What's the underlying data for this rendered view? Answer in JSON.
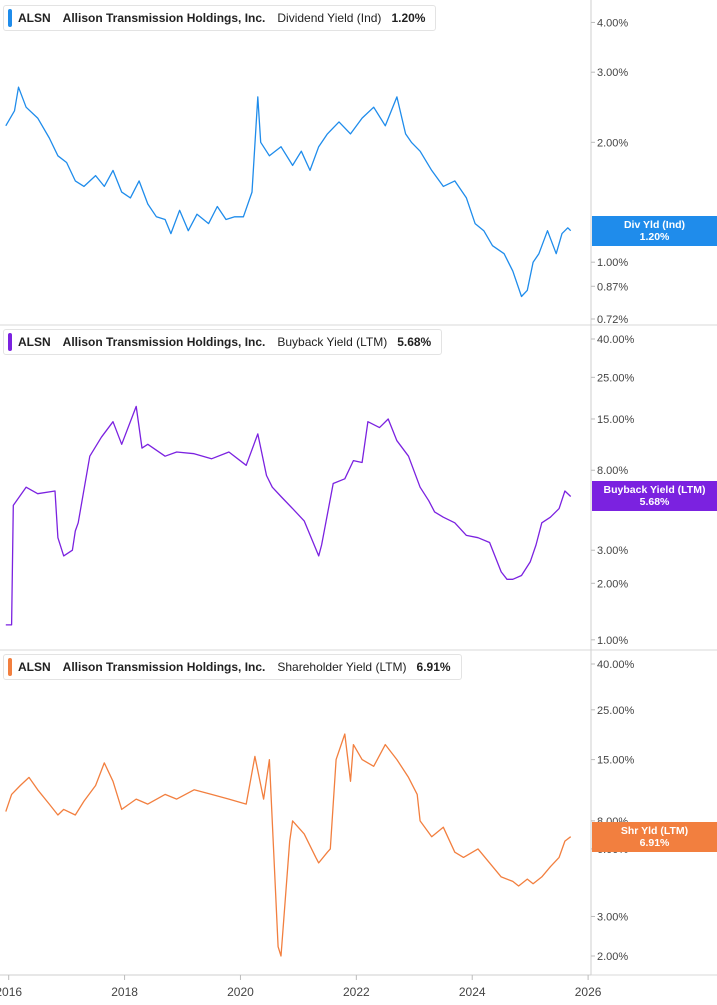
{
  "chart_data": [
    {
      "type": "line",
      "ticker": "ALSN",
      "company": "Allison Transmission Holdings, Inc.",
      "metric": "Dividend Yield (Ind)",
      "current": "1.20%",
      "tag_label": "Div Yld (Ind)",
      "color": "#1f8ceb",
      "scale": "log",
      "ylim": [
        0.72,
        4.2
      ],
      "yticks": [
        "4.00%",
        "3.00%",
        "2.00%",
        "1.00%",
        "0.87%",
        "0.72%"
      ],
      "ytick_values": [
        4.0,
        3.0,
        2.0,
        1.0,
        0.87,
        0.72
      ],
      "series": [
        {
          "x": [
            2015.95,
            2016.1,
            2016.17,
            2016.3,
            2016.5,
            2016.7,
            2016.85,
            2017.0,
            2017.15,
            2017.3,
            2017.5,
            2017.65,
            2017.8,
            2017.95,
            2018.1,
            2018.25,
            2018.4,
            2018.55,
            2018.7,
            2018.8,
            2018.95,
            2019.1,
            2019.25,
            2019.45,
            2019.6,
            2019.75,
            2019.9,
            2020.05,
            2020.2,
            2020.3,
            2020.35,
            2020.5,
            2020.7,
            2020.9,
            2021.05,
            2021.2,
            2021.35,
            2021.5,
            2021.7,
            2021.9,
            2022.1,
            2022.3,
            2022.5,
            2022.7,
            2022.85,
            2022.95,
            2023.1,
            2023.3,
            2023.5,
            2023.7,
            2023.9,
            2024.05,
            2024.2,
            2024.35,
            2024.55,
            2024.7,
            2024.85,
            2024.95,
            2025.05,
            2025.15,
            2025.3,
            2025.45,
            2025.55,
            2025.65,
            2025.7
          ],
          "y": [
            2.2,
            2.4,
            2.75,
            2.45,
            2.3,
            2.05,
            1.85,
            1.78,
            1.6,
            1.55,
            1.65,
            1.55,
            1.7,
            1.5,
            1.45,
            1.6,
            1.4,
            1.3,
            1.28,
            1.18,
            1.35,
            1.2,
            1.32,
            1.25,
            1.38,
            1.28,
            1.3,
            1.3,
            1.5,
            2.6,
            2.0,
            1.85,
            1.95,
            1.75,
            1.9,
            1.7,
            1.95,
            2.1,
            2.25,
            2.1,
            2.3,
            2.45,
            2.2,
            2.6,
            2.1,
            2.0,
            1.9,
            1.7,
            1.55,
            1.6,
            1.45,
            1.25,
            1.2,
            1.1,
            1.05,
            0.95,
            0.82,
            0.85,
            1.0,
            1.05,
            1.2,
            1.05,
            1.18,
            1.22,
            1.2
          ]
        }
      ]
    },
    {
      "type": "line",
      "ticker": "ALSN",
      "company": "Allison Transmission Holdings, Inc.",
      "metric": "Buyback Yield (LTM)",
      "current": "5.68%",
      "tag_label": "Buyback Yield (LTM)",
      "color": "#7b22e0",
      "scale": "log",
      "ylim": [
        0.95,
        40
      ],
      "yticks": [
        "40.00%",
        "25.00%",
        "15.00%",
        "8.00%",
        "3.00%",
        "2.00%",
        "1.00%"
      ],
      "ytick_values": [
        40,
        25,
        15,
        8,
        3,
        2,
        1
      ],
      "series": [
        {
          "x": [
            2015.95,
            2016.05,
            2016.08,
            2016.3,
            2016.5,
            2016.8,
            2016.85,
            2016.95,
            2017.1,
            2017.15,
            2017.2,
            2017.4,
            2017.6,
            2017.8,
            2017.95,
            2018.2,
            2018.3,
            2018.4,
            2018.7,
            2018.9,
            2019.2,
            2019.5,
            2019.8,
            2020.1,
            2020.3,
            2020.45,
            2020.55,
            2020.7,
            2020.9,
            2021.1,
            2021.35,
            2021.4,
            2021.6,
            2021.8,
            2021.95,
            2022.1,
            2022.2,
            2022.4,
            2022.55,
            2022.7,
            2022.9,
            2023.1,
            2023.25,
            2023.35,
            2023.5,
            2023.7,
            2023.9,
            2024.1,
            2024.3,
            2024.5,
            2024.6,
            2024.7,
            2024.85,
            2025.0,
            2025.1,
            2025.2,
            2025.35,
            2025.5,
            2025.6,
            2025.7
          ],
          "y": [
            1.2,
            1.2,
            5.2,
            6.5,
            6.0,
            6.2,
            3.5,
            2.8,
            3.0,
            3.8,
            4.2,
            9.5,
            12.0,
            14.5,
            11.0,
            17.5,
            10.5,
            11.0,
            9.5,
            10.0,
            9.8,
            9.2,
            10.0,
            8.5,
            12.5,
            7.5,
            6.5,
            5.8,
            5.0,
            4.3,
            2.8,
            3.2,
            6.8,
            7.2,
            9.0,
            8.8,
            14.5,
            13.5,
            15.0,
            11.5,
            9.5,
            6.5,
            5.5,
            4.8,
            4.5,
            4.2,
            3.6,
            3.5,
            3.3,
            2.3,
            2.1,
            2.1,
            2.2,
            2.6,
            3.2,
            4.2,
            4.5,
            5.0,
            6.2,
            5.8
          ]
        }
      ]
    },
    {
      "type": "line",
      "ticker": "ALSN",
      "company": "Allison Transmission Holdings, Inc.",
      "metric": "Shareholder Yield (LTM)",
      "current": "6.91%",
      "tag_label": "Shr Yld (LTM)",
      "color": "#f27f3f",
      "scale": "log",
      "ylim": [
        1.75,
        40
      ],
      "yticks": [
        "40.00%",
        "25.00%",
        "15.00%",
        "8.00%",
        "6.00%",
        "3.00%",
        "2.00%"
      ],
      "ytick_values": [
        40,
        25,
        15,
        8,
        6,
        3,
        2
      ],
      "series": [
        {
          "x": [
            2015.95,
            2016.05,
            2016.2,
            2016.35,
            2016.5,
            2016.7,
            2016.85,
            2016.95,
            2017.15,
            2017.3,
            2017.5,
            2017.65,
            2017.8,
            2017.95,
            2018.2,
            2018.4,
            2018.7,
            2018.9,
            2019.2,
            2019.5,
            2019.8,
            2020.1,
            2020.25,
            2020.4,
            2020.5,
            2020.65,
            2020.7,
            2020.85,
            2020.9,
            2021.1,
            2021.3,
            2021.35,
            2021.5,
            2021.55,
            2021.65,
            2021.8,
            2021.9,
            2021.95,
            2022.1,
            2022.3,
            2022.5,
            2022.7,
            2022.9,
            2023.05,
            2023.1,
            2023.3,
            2023.5,
            2023.7,
            2023.85,
            2024.1,
            2024.3,
            2024.5,
            2024.7,
            2024.8,
            2024.95,
            2025.05,
            2025.2,
            2025.35,
            2025.5,
            2025.6,
            2025.7
          ],
          "y": [
            8.8,
            10.5,
            11.5,
            12.5,
            11.0,
            9.5,
            8.5,
            9.0,
            8.5,
            9.8,
            11.5,
            14.5,
            12.0,
            9.0,
            10.0,
            9.5,
            10.5,
            10.0,
            11.0,
            10.5,
            10.0,
            9.5,
            15.5,
            10.0,
            15.0,
            2.2,
            2.0,
            6.5,
            8.0,
            7.0,
            5.5,
            5.2,
            5.8,
            6.0,
            15.0,
            19.5,
            12.0,
            17.5,
            15.0,
            14.0,
            17.5,
            15.0,
            12.5,
            10.5,
            8.0,
            6.8,
            7.5,
            5.8,
            5.5,
            6.0,
            5.2,
            4.5,
            4.3,
            4.1,
            4.4,
            4.2,
            4.5,
            5.0,
            5.5,
            6.5,
            6.8
          ]
        }
      ]
    }
  ],
  "x_axis": {
    "ticks": [
      "2016",
      "2018",
      "2020",
      "2022",
      "2024",
      "2026"
    ],
    "tick_values": [
      2016,
      2018,
      2020,
      2022,
      2024,
      2026
    ]
  }
}
